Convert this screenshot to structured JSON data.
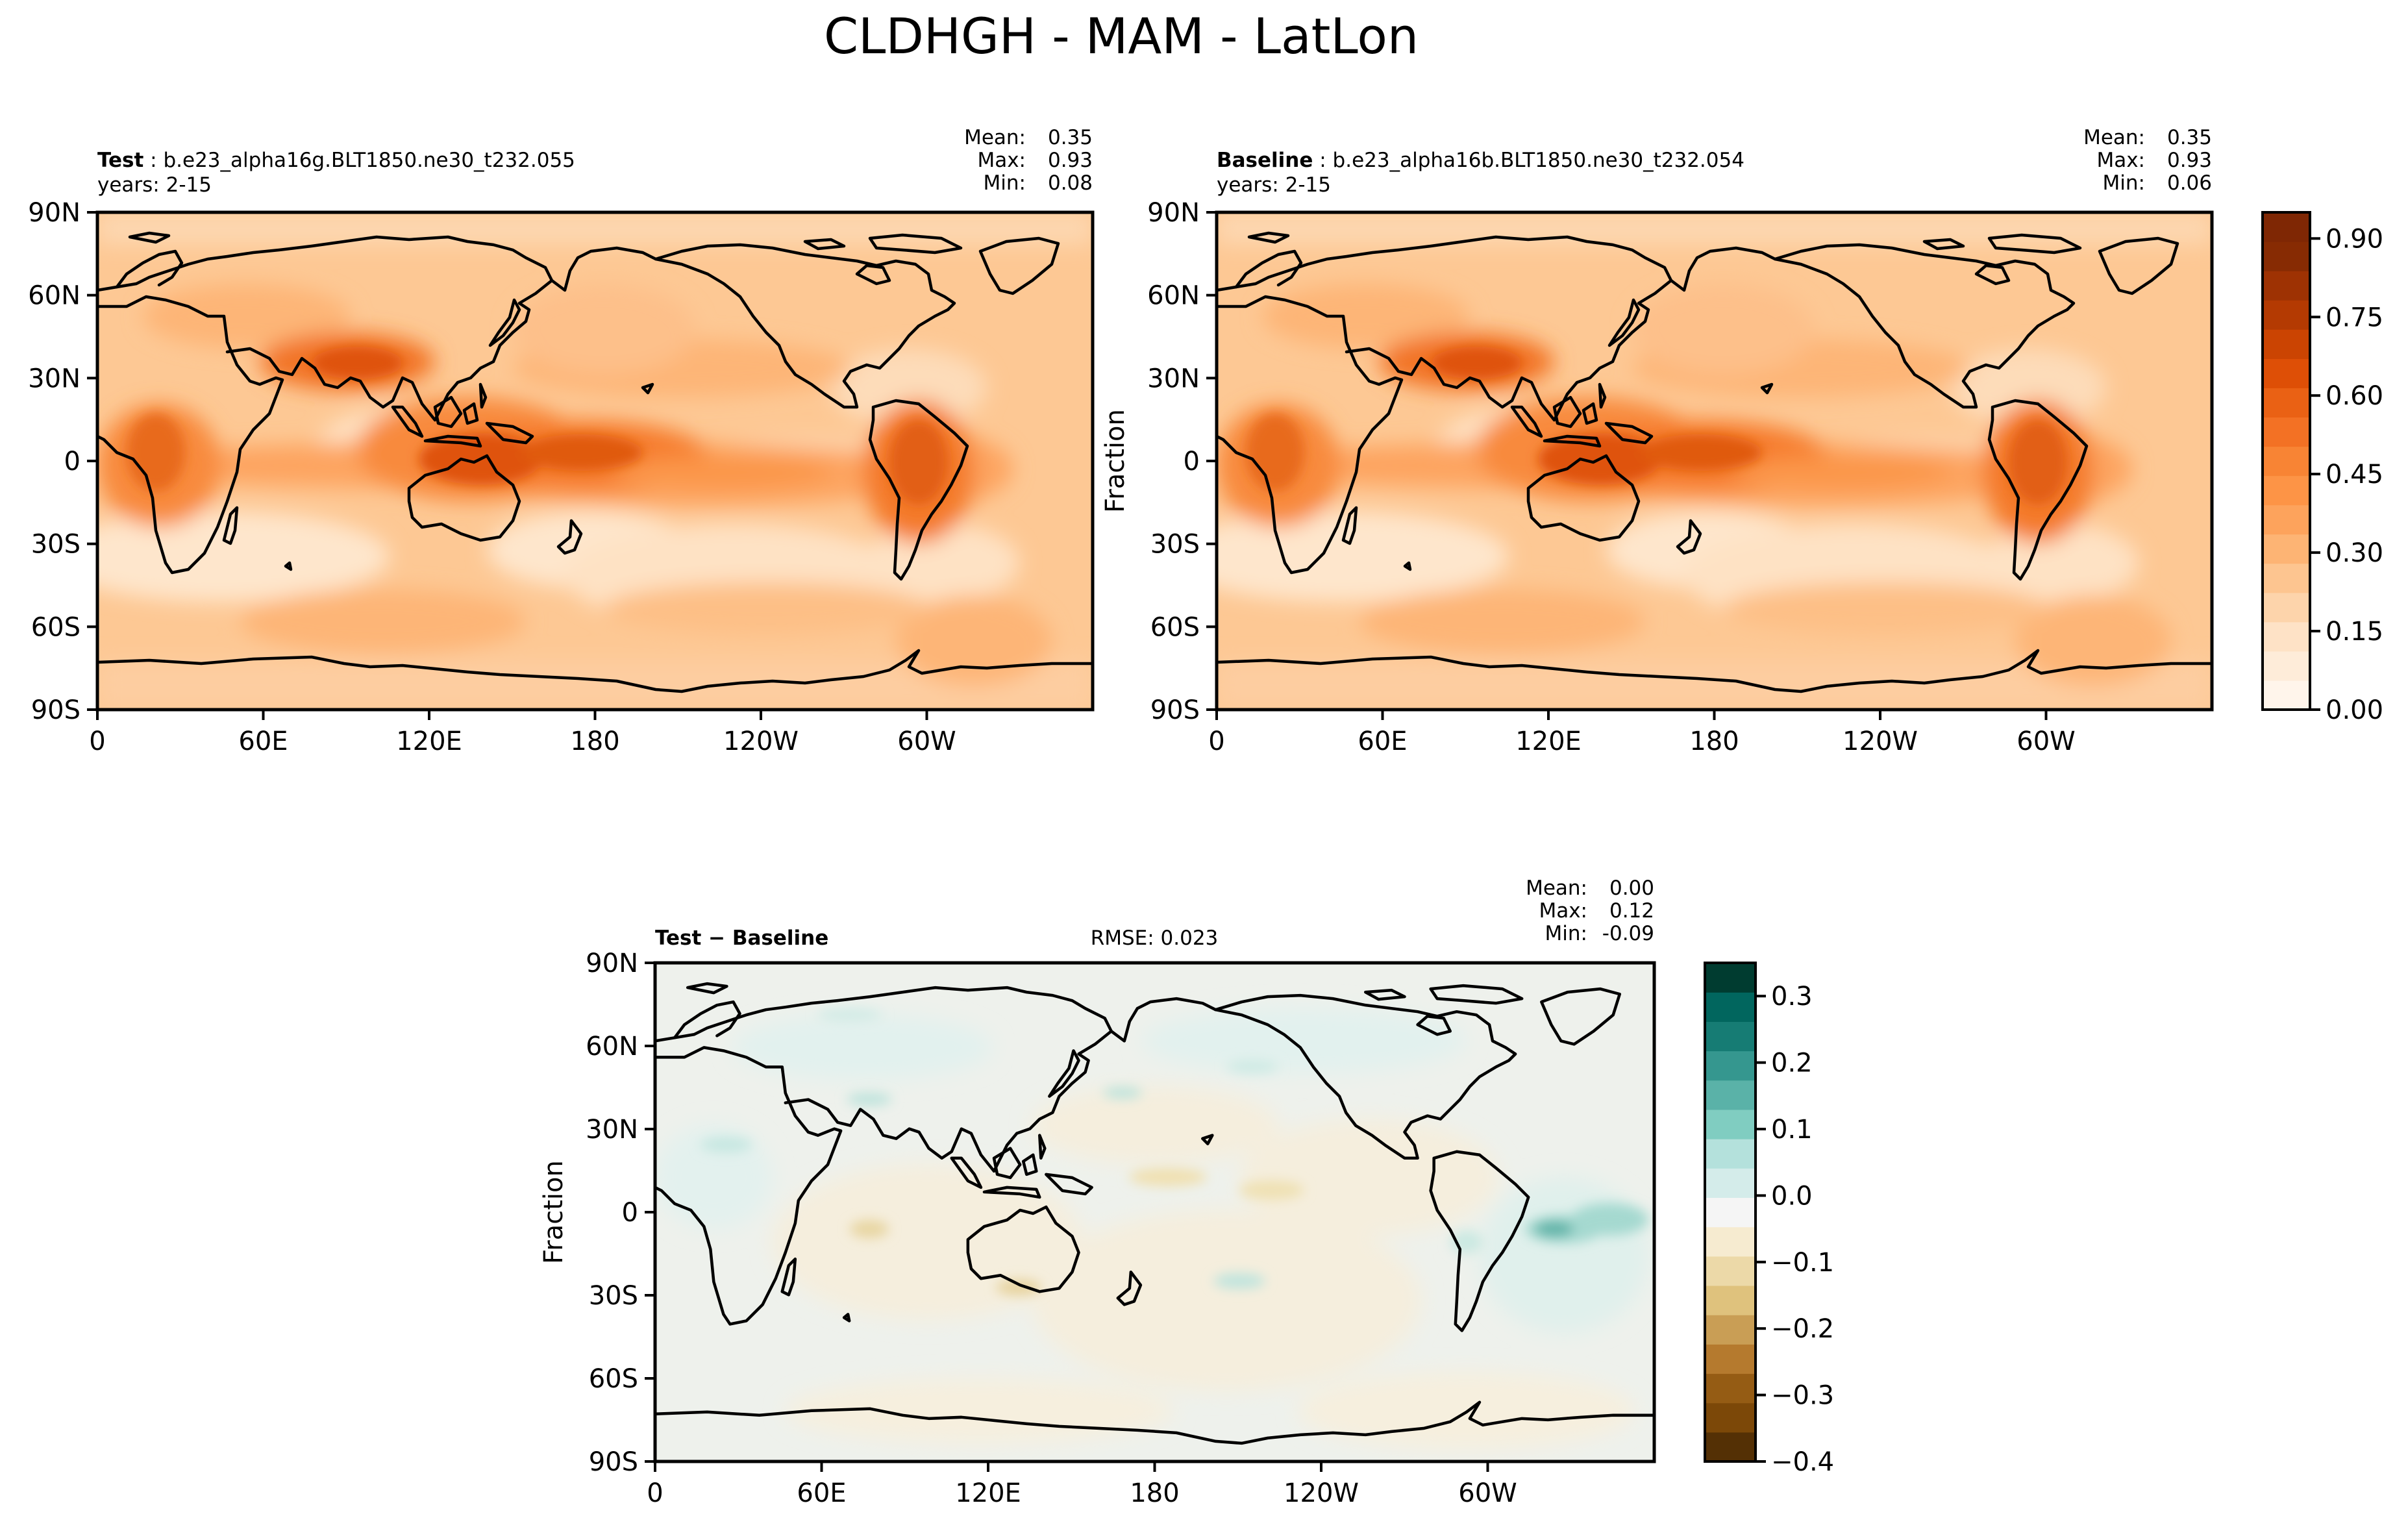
{
  "figure": {
    "title": "CLDHGH - MAM - LatLon"
  },
  "axis_ticks": {
    "lat": [
      "90N",
      "60N",
      "30N",
      "0",
      "30S",
      "60S",
      "90S"
    ],
    "lon": [
      "0",
      "60E",
      "120E",
      "180",
      "120W",
      "60W"
    ]
  },
  "panels": {
    "test": {
      "label": "Test",
      "case": "b.e23_alpha16g.BLT1850.ne30_t232.055",
      "years": "years: 2-15",
      "stats": [
        {
          "label": "Mean:",
          "value": "0.35"
        },
        {
          "label": "Max:",
          "value": "0.93"
        },
        {
          "label": "Min:",
          "value": "0.08"
        }
      ]
    },
    "baseline": {
      "label": "Baseline",
      "case": "b.e23_alpha16b.BLT1850.ne30_t232.054",
      "years": "years: 2-15",
      "ylabel": "Fraction",
      "stats": [
        {
          "label": "Mean:",
          "value": "0.35"
        },
        {
          "label": "Max:",
          "value": "0.93"
        },
        {
          "label": "Min:",
          "value": "0.06"
        }
      ]
    },
    "diff": {
      "label": "Test − Baseline",
      "rmse": "RMSE: 0.023",
      "ylabel": "Fraction",
      "stats": [
        {
          "label": "Mean:",
          "value": "0.00"
        },
        {
          "label": "Max:",
          "value": "0.12"
        },
        {
          "label": "Min:",
          "value": "-0.09"
        }
      ]
    }
  },
  "colorbars": {
    "main": {
      "ticks": [
        "0.00",
        "0.15",
        "0.30",
        "0.45",
        "0.60",
        "0.75",
        "0.90"
      ],
      "colors": [
        "#fff5eb",
        "#feecd9",
        "#fee2c6",
        "#fdd4ab",
        "#fdc590",
        "#fdb474",
        "#fda35c",
        "#fd9446",
        "#f88434",
        "#f37124",
        "#ea6114",
        "#de4f06",
        "#cb4402",
        "#b43a02",
        "#9e3203",
        "#872b03",
        "#7f2704"
      ]
    },
    "diff": {
      "ticks": [
        "0.3",
        "0.2",
        "0.1",
        "0.0",
        "−0.1",
        "−0.2",
        "−0.3",
        "−0.4"
      ],
      "colors": [
        "#543005",
        "#7c4808",
        "#955c14",
        "#b57a2e",
        "#c99e55",
        "#dfc27d",
        "#ecd9a8",
        "#f6ebd0",
        "#f5f5f5",
        "#d4ecea",
        "#b4e1dc",
        "#80cdc1",
        "#5ab2a8",
        "#35978f",
        "#167c74",
        "#01665e",
        "#003c30"
      ]
    }
  },
  "chart_data": [
    {
      "type": "heatmap",
      "title": "Test: b.e23_alpha16g.BLT1850.ne30_t232.055",
      "variable": "CLDHGH",
      "units": "Fraction",
      "xlabel": "",
      "ylabel": "",
      "x_ticks": [
        "0",
        "60E",
        "120E",
        "180",
        "120W",
        "60W"
      ],
      "y_ticks": [
        "90N",
        "60N",
        "30N",
        "0",
        "30S",
        "60S",
        "90S"
      ],
      "xlim": [
        0,
        360
      ],
      "ylim": [
        -90,
        90
      ],
      "color_range": [
        0.0,
        0.95
      ],
      "colorbar_ticks": [
        0.0,
        0.15,
        0.3,
        0.45,
        0.6,
        0.75,
        0.9
      ],
      "mean": 0.35,
      "max": 0.93,
      "min": 0.08
    },
    {
      "type": "heatmap",
      "title": "Baseline: b.e23_alpha16b.BLT1850.ne30_t232.054",
      "variable": "CLDHGH",
      "units": "Fraction",
      "xlabel": "",
      "ylabel": "Fraction",
      "x_ticks": [
        "0",
        "60E",
        "120E",
        "180",
        "120W",
        "60W"
      ],
      "y_ticks": [
        "90N",
        "60N",
        "30N",
        "0",
        "30S",
        "60S",
        "90S"
      ],
      "xlim": [
        0,
        360
      ],
      "ylim": [
        -90,
        90
      ],
      "color_range": [
        0.0,
        0.95
      ],
      "colorbar_ticks": [
        0.0,
        0.15,
        0.3,
        0.45,
        0.6,
        0.75,
        0.9
      ],
      "mean": 0.35,
      "max": 0.93,
      "min": 0.06
    },
    {
      "type": "heatmap",
      "title": "Test − Baseline",
      "variable": "CLDHGH",
      "units": "Fraction",
      "xlabel": "",
      "ylabel": "Fraction",
      "x_ticks": [
        "0",
        "60E",
        "120E",
        "180",
        "120W",
        "60W"
      ],
      "y_ticks": [
        "90N",
        "60N",
        "30N",
        "0",
        "30S",
        "60S",
        "90S"
      ],
      "xlim": [
        0,
        360
      ],
      "ylim": [
        -90,
        90
      ],
      "color_range": [
        -0.4,
        0.35
      ],
      "colorbar_ticks": [
        -0.4,
        -0.3,
        -0.2,
        -0.1,
        0.0,
        0.1,
        0.2,
        0.3
      ],
      "rmse": 0.023,
      "mean": 0.0,
      "max": 0.12,
      "min": -0.09
    }
  ]
}
